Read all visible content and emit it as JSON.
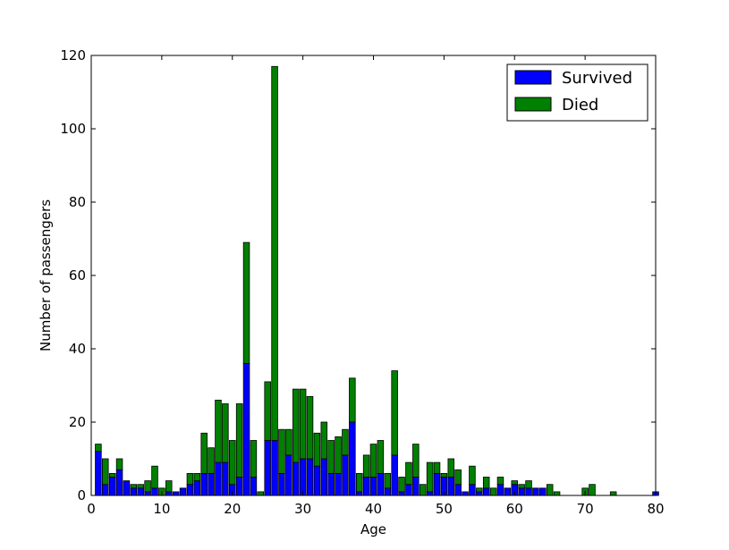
{
  "chart_data": {
    "type": "bar",
    "stacked": true,
    "title": "",
    "xlabel": "Age",
    "ylabel": "Number of passengers",
    "xlim": [
      0,
      80
    ],
    "ylim": [
      0,
      120
    ],
    "xticks": [
      0,
      10,
      20,
      30,
      40,
      50,
      60,
      70,
      80
    ],
    "yticks": [
      0,
      20,
      40,
      60,
      80,
      100,
      120
    ],
    "grid": false,
    "legend_position": "top-right",
    "bar_width": 0.85,
    "x": [
      1,
      2,
      3,
      4,
      5,
      6,
      7,
      8,
      9,
      10,
      11,
      12,
      13,
      14,
      15,
      16,
      17,
      18,
      19,
      20,
      21,
      22,
      23,
      24,
      25,
      26,
      27,
      28,
      29,
      30,
      31,
      32,
      33,
      34,
      35,
      36,
      37,
      38,
      39,
      40,
      41,
      42,
      43,
      44,
      45,
      46,
      47,
      48,
      49,
      50,
      51,
      52,
      53,
      54,
      55,
      56,
      57,
      58,
      59,
      60,
      61,
      62,
      63,
      64,
      65,
      66,
      67,
      68,
      69,
      70,
      71,
      72,
      73,
      74,
      75,
      76,
      77,
      78,
      79,
      80
    ],
    "series": [
      {
        "name": "Survived",
        "color": "#0000ff",
        "values": [
          12,
          3,
          5,
          7,
          4,
          2,
          2,
          1,
          2,
          0,
          1,
          1,
          2,
          3,
          4,
          6,
          6,
          9,
          9,
          3,
          5,
          36,
          5,
          0,
          15,
          15,
          6,
          11,
          9,
          10,
          10,
          8,
          10,
          6,
          6,
          11,
          20,
          1,
          5,
          5,
          6,
          2,
          11,
          1,
          3,
          5,
          0,
          1,
          6,
          5,
          5,
          3,
          1,
          3,
          1,
          2,
          0,
          3,
          2,
          3,
          2,
          2,
          2,
          2,
          0,
          0,
          0,
          0,
          0,
          0,
          0,
          0,
          0,
          0,
          0,
          0,
          0,
          0,
          0,
          1
        ]
      },
      {
        "name": "Died",
        "color": "#008000",
        "values": [
          2,
          7,
          1,
          3,
          0,
          1,
          1,
          3,
          6,
          2,
          3,
          0,
          0,
          3,
          2,
          11,
          7,
          17,
          16,
          12,
          20,
          33,
          10,
          1,
          16,
          102,
          12,
          7,
          20,
          19,
          17,
          9,
          10,
          9,
          10,
          7,
          12,
          5,
          6,
          9,
          9,
          4,
          23,
          4,
          6,
          9,
          3,
          8,
          3,
          1,
          5,
          4,
          0,
          5,
          1,
          3,
          2,
          2,
          0,
          1,
          1,
          2,
          0,
          0,
          3,
          1,
          0,
          0,
          0,
          2,
          3,
          0,
          0,
          1,
          0,
          0,
          0,
          0,
          0,
          0
        ]
      }
    ]
  }
}
